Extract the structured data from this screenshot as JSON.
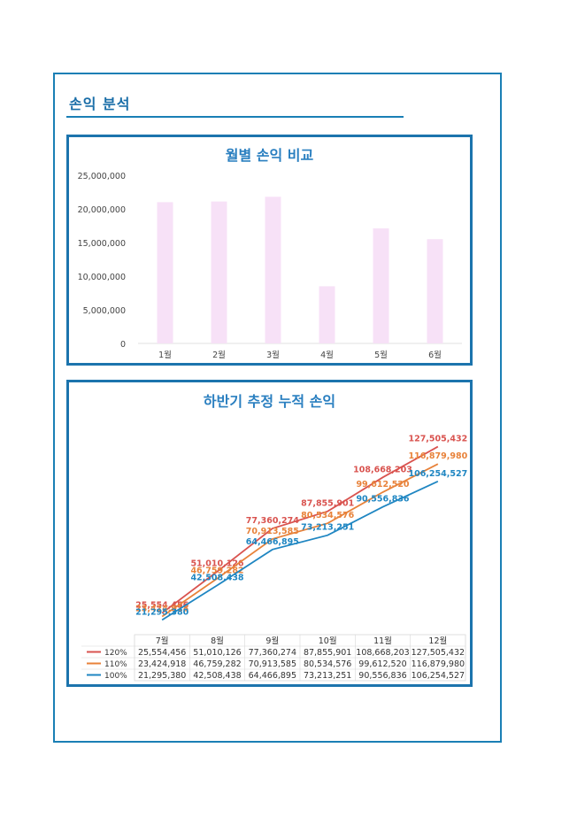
{
  "section": {
    "title": "손익 분석"
  },
  "chart_data": [
    {
      "type": "bar",
      "title": "월별 손익 비교",
      "categories": [
        "1월",
        "2월",
        "3월",
        "4월",
        "5월",
        "6월"
      ],
      "values": [
        21000000,
        21100000,
        21800000,
        8500000,
        17100000,
        15500000
      ],
      "ylim": [
        0,
        25000000
      ],
      "yticks": [
        0,
        5000000,
        10000000,
        15000000,
        20000000,
        25000000
      ],
      "ytick_labels": [
        "0",
        "5,000,000",
        "10,000,000",
        "15,000,000",
        "20,000,000",
        "25,000,000"
      ],
      "bar_color": "#f7e1f7",
      "grid": false
    },
    {
      "type": "line",
      "title": "하반기 추정 누적 손익",
      "categories": [
        "7월",
        "8월",
        "9월",
        "10월",
        "11월",
        "12월"
      ],
      "series": [
        {
          "name": "120%",
          "color": "#d9534f",
          "values": [
            25554456,
            51010126,
            77360274,
            87855901,
            108668203,
            127505432
          ],
          "labels": [
            "25,554,456",
            "51,010,126",
            "77,360,274",
            "87,855,901",
            "108,668,203",
            "127,505,432"
          ]
        },
        {
          "name": "110%",
          "color": "#e8823a",
          "values": [
            23424918,
            46759282,
            70913585,
            80534576,
            99612520,
            116879980
          ],
          "labels": [
            "23,424,918",
            "46,759,282",
            "70,913,585",
            "80,534,576",
            "99,612,520",
            "116,879,980"
          ]
        },
        {
          "name": "100%",
          "color": "#1f86c2",
          "values": [
            21295380,
            42508438,
            64466895,
            73213251,
            90556836,
            106254527
          ],
          "labels": [
            "21,295,380",
            "42,508,438",
            "64,466,895",
            "73,213,251",
            "90,556,836",
            "106,254,527"
          ]
        }
      ],
      "data_table": true,
      "legend": "in-table",
      "grid": false
    }
  ]
}
